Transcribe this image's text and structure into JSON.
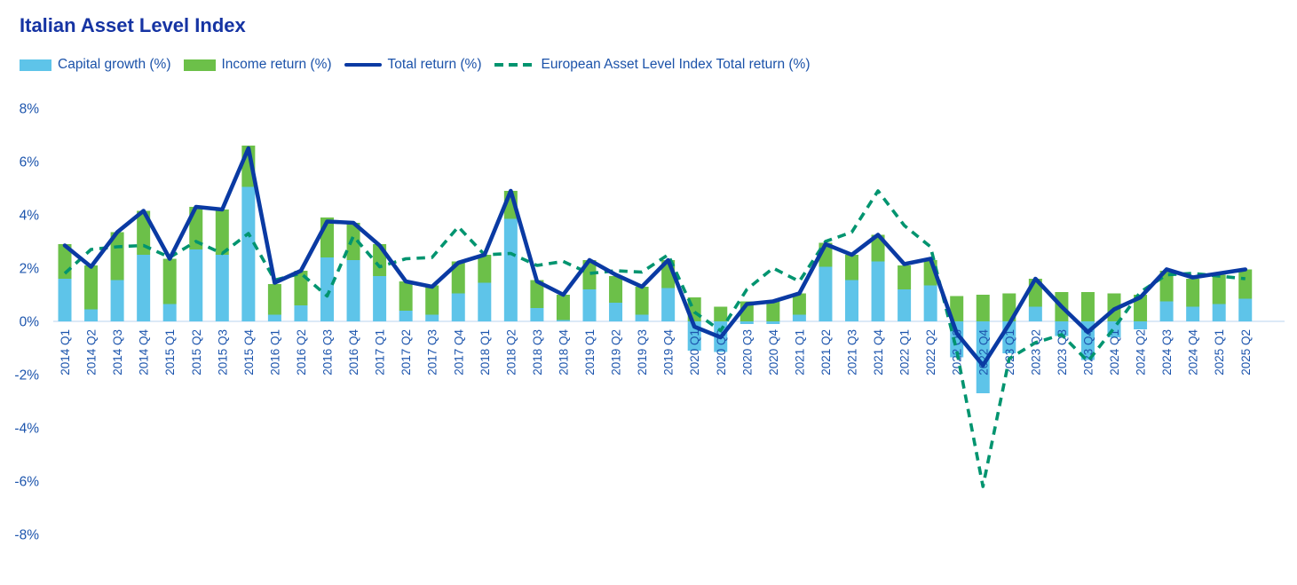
{
  "title": "Italian Asset Level Index",
  "legend": {
    "items": [
      {
        "label": "Capital growth (%)",
        "swatch": "bar",
        "color": "#5ec4e9"
      },
      {
        "label": "Income return (%)",
        "swatch": "bar",
        "color": "#6cc049"
      },
      {
        "label": "Total return (%)",
        "swatch": "line",
        "color": "#0a3aa3"
      },
      {
        "label": "European Asset Level Index Total return (%)",
        "swatch": "dashed-line",
        "color": "#00946f"
      }
    ]
  },
  "colors": {
    "capital_growth": "#5ec4e9",
    "income_return": "#6cc049",
    "total_return": "#0a3aa3",
    "european_index": "#00946f",
    "axis_text": "#1d55ad",
    "title_text": "#1634a3",
    "zero_line": "#c7dcf2"
  },
  "chart_data": {
    "type": "bar",
    "subtype": "stacked-bars-with-lines",
    "title": "Italian Asset Level Index",
    "xlabel": "",
    "ylabel": "",
    "ylim": [
      -8,
      8
    ],
    "grid": false,
    "legend_position": "top",
    "y_ticks": [
      {
        "value": 8,
        "label": "8%"
      },
      {
        "value": 6,
        "label": "6%"
      },
      {
        "value": 4,
        "label": "4%"
      },
      {
        "value": 2,
        "label": "2%"
      },
      {
        "value": 0,
        "label": "0%"
      },
      {
        "value": -2,
        "label": "-2%"
      },
      {
        "value": -4,
        "label": "-4%"
      },
      {
        "value": -6,
        "label": "-6%"
      },
      {
        "value": -8,
        "label": "-8%"
      }
    ],
    "categories": [
      "2014 Q1",
      "2014 Q2",
      "2014 Q3",
      "2014 Q4",
      "2015 Q1",
      "2015 Q2",
      "2015 Q3",
      "2015 Q4",
      "2016 Q1",
      "2016 Q2",
      "2016 Q3",
      "2016 Q4",
      "2017 Q1",
      "2017 Q2",
      "2017 Q3",
      "2017 Q4",
      "2018 Q1",
      "2018 Q2",
      "2018 Q3",
      "2018 Q4",
      "2019 Q1",
      "2019 Q2",
      "2019 Q3",
      "2019 Q4",
      "2020 Q1",
      "2020 Q2",
      "2020 Q3",
      "2020 Q4",
      "2021 Q1",
      "2021 Q2",
      "2021 Q3",
      "2021 Q4",
      "2022 Q1",
      "2022 Q2",
      "2022 Q3",
      "2022 Q4",
      "2023 Q1",
      "2023 Q2",
      "2023 Q3",
      "2023 Q4",
      "2024 Q1",
      "2024 Q2",
      "2024 Q3",
      "2024 Q4",
      "2025 Q1",
      "2025 Q2"
    ],
    "series": [
      {
        "name": "Capital growth (%)",
        "render": "bar",
        "values": [
          1.6,
          0.45,
          1.55,
          2.5,
          0.65,
          2.7,
          2.5,
          5.05,
          0.25,
          0.6,
          2.4,
          2.3,
          1.7,
          0.4,
          0.25,
          1.05,
          1.45,
          3.85,
          0.5,
          0.05,
          1.2,
          0.7,
          0.25,
          1.25,
          -1.1,
          -1.15,
          -0.1,
          -0.1,
          0.25,
          2.05,
          1.55,
          2.25,
          1.2,
          1.35,
          -1.35,
          -2.7,
          -1.2,
          0.55,
          -0.55,
          -1.45,
          -0.6,
          -0.3,
          0.75,
          0.55,
          0.65,
          0.85
        ]
      },
      {
        "name": "Income return (%)",
        "render": "bar",
        "values": [
          1.3,
          1.65,
          1.8,
          1.65,
          1.7,
          1.6,
          1.7,
          1.55,
          1.15,
          1.3,
          1.5,
          1.4,
          1.2,
          1.1,
          1.1,
          1.2,
          1.05,
          1.05,
          1.05,
          0.95,
          1.1,
          1.0,
          1.05,
          1.05,
          0.9,
          0.55,
          0.75,
          0.8,
          0.8,
          0.9,
          0.95,
          1.0,
          0.9,
          0.95,
          0.95,
          1.0,
          1.05,
          1.05,
          1.1,
          1.1,
          1.05,
          1.0,
          1.15,
          1.05,
          1.1,
          1.1
        ]
      },
      {
        "name": "Total return (%)",
        "render": "line",
        "values": [
          2.85,
          2.05,
          3.35,
          4.15,
          2.35,
          4.3,
          4.2,
          6.5,
          1.45,
          1.9,
          3.75,
          3.7,
          2.85,
          1.5,
          1.3,
          2.2,
          2.5,
          4.9,
          1.5,
          1.0,
          2.3,
          1.75,
          1.3,
          2.3,
          -0.2,
          -0.6,
          0.65,
          0.75,
          1.05,
          2.9,
          2.5,
          3.25,
          2.15,
          2.35,
          -0.45,
          -1.65,
          -0.1,
          1.6,
          0.55,
          -0.4,
          0.45,
          0.9,
          1.95,
          1.65,
          1.8,
          1.95
        ]
      },
      {
        "name": "European Asset Level Index Total return (%)",
        "render": "dashed-line",
        "values": [
          1.8,
          2.7,
          2.8,
          2.85,
          2.4,
          3.0,
          2.55,
          3.3,
          1.55,
          1.8,
          0.95,
          3.2,
          2.05,
          2.35,
          2.4,
          3.55,
          2.5,
          2.55,
          2.1,
          2.25,
          1.8,
          1.9,
          1.85,
          2.5,
          0.35,
          -0.35,
          1.2,
          2.0,
          1.5,
          3.0,
          3.35,
          4.9,
          3.6,
          2.8,
          -1.1,
          -6.2,
          -1.4,
          -0.8,
          -0.5,
          -1.5,
          -0.25,
          1.1,
          1.75,
          1.8,
          1.7,
          1.6
        ]
      }
    ]
  }
}
